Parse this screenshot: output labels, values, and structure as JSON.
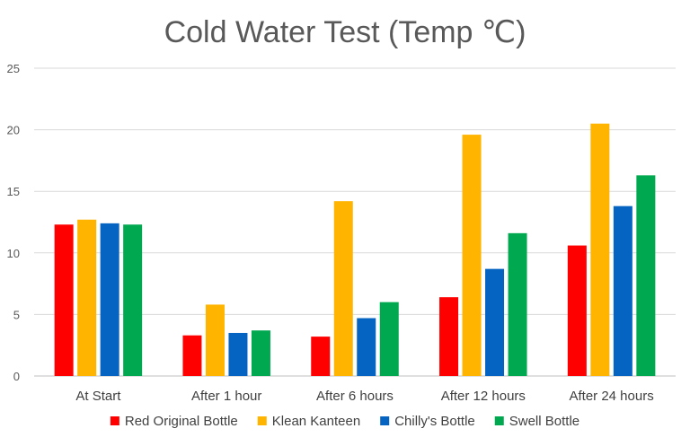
{
  "chart_data": {
    "type": "bar",
    "title": "Cold Water Test (Temp ℃)",
    "xlabel": "",
    "ylabel": "",
    "categories": [
      "At Start",
      "After 1 hour",
      "After 6 hours",
      "After 12 hours",
      "After 24 hours"
    ],
    "series": [
      {
        "name": "Red Original Bottle",
        "color": "#ff0000",
        "values": [
          12.3,
          3.3,
          3.2,
          6.4,
          10.6
        ]
      },
      {
        "name": "Klean Kanteen",
        "color": "#ffb400",
        "values": [
          12.7,
          5.8,
          14.2,
          19.6,
          20.5
        ]
      },
      {
        "name": "Chilly's Bottle",
        "color": "#0563c1",
        "values": [
          12.4,
          3.5,
          4.7,
          8.7,
          13.8
        ]
      },
      {
        "name": "Swell Bottle",
        "color": "#00a84f",
        "values": [
          12.3,
          3.7,
          6.0,
          11.6,
          16.3
        ]
      }
    ],
    "ylim": [
      0,
      25
    ],
    "yticks": [
      0,
      5,
      10,
      15,
      20,
      25
    ],
    "grid": true,
    "legend_position": "bottom"
  }
}
